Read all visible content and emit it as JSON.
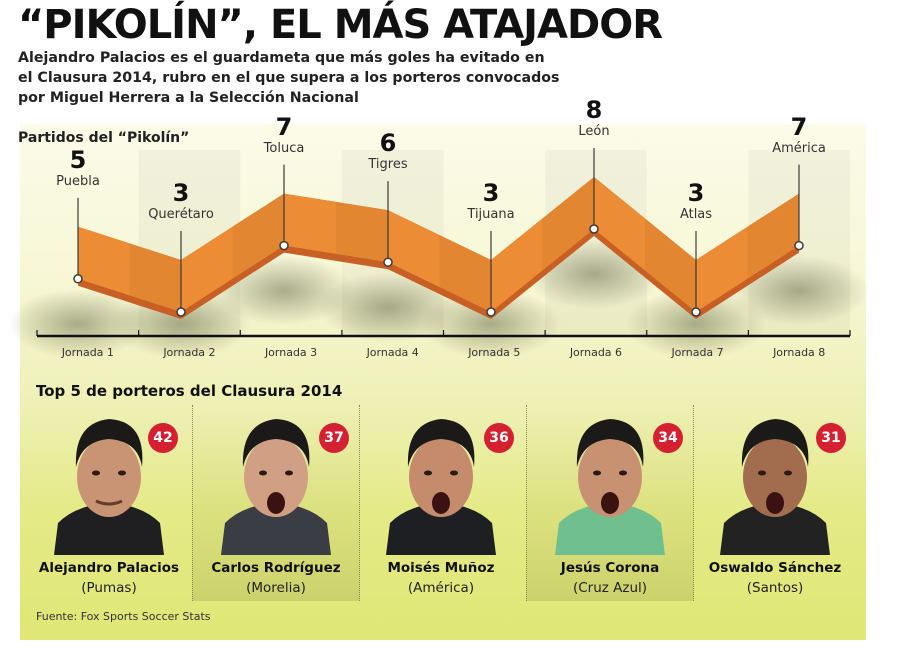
{
  "header": {
    "title": "“PIKOLÍN”, EL MÁS ATAJADOR",
    "subtitle_lines": [
      "Alejandro Palacios es el guardameta que más goles ha evitado en",
      "el Clausura 2014, rubro en el que supera a los porteros convocados",
      "por Miguel Herrera a la Selección Nacional"
    ]
  },
  "chart_data": {
    "type": "line",
    "title": "Partidos del “Pikolín”",
    "xlabel": "",
    "ylabel": "",
    "categories": [
      "Jornada 1",
      "Jornada 2",
      "Jornada 3",
      "Jornada 4",
      "Jornada 5",
      "Jornada 6",
      "Jornada 7",
      "Jornada 8"
    ],
    "opponents": [
      "Puebla",
      "Querétaro",
      "Toluca",
      "Tigres",
      "Tijuana",
      "León",
      "Atlas",
      "América"
    ],
    "values": [
      5,
      3,
      7,
      6,
      3,
      8,
      3,
      7
    ],
    "series": [
      {
        "name": "Partidos del “Pikolín”",
        "values": [
          5,
          3,
          7,
          6,
          3,
          8,
          3,
          7
        ]
      }
    ],
    "grid": false,
    "legend": "none",
    "colors": {
      "band": "#ec8c34",
      "band_shadow": "#c85f25",
      "panel": "#eef0b4"
    }
  },
  "ranking": {
    "title": "Top 5 de porteros del Clausura 2014",
    "players": [
      {
        "name": "Alejandro Palacios",
        "team": "(Pumas)",
        "value": "42"
      },
      {
        "name": "Carlos Rodríguez",
        "team": "(Morelia)",
        "value": "37"
      },
      {
        "name": "Moisés Muñoz",
        "team": "(América)",
        "value": "36"
      },
      {
        "name": "Jesús Corona",
        "team": "(Cruz Azul)",
        "value": "34"
      },
      {
        "name": "Oswaldo Sánchez",
        "team": "(Santos)",
        "value": "31"
      }
    ],
    "badge_color": "#d42030"
  },
  "footer": {
    "source": "Fuente: Fox Sports Soccer Stats"
  }
}
